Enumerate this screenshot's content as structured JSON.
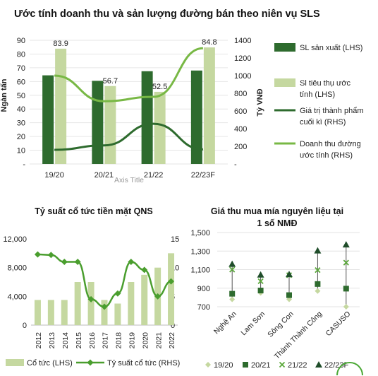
{
  "chart_data": [
    {
      "type": "bar",
      "title": "Ước tính doanh thu và sản lượng đường bán theo niên vụ SLS",
      "categories": [
        "19/20",
        "20/21",
        "21/22",
        "22/23F"
      ],
      "xlabel": "Axis Title",
      "ylabel": "Ngàn tấn",
      "y2label": "Tỷ VNĐ",
      "ylim": [
        0,
        90
      ],
      "y2lim": [
        0,
        1400
      ],
      "y_ticks": [
        "-",
        "10",
        "20",
        "30",
        "40",
        "50",
        "60",
        "70",
        "80",
        "90"
      ],
      "y2_ticks": [
        "-",
        "200",
        "400",
        "600",
        "800",
        "1000",
        "1200",
        "1400"
      ],
      "series": [
        {
          "name": "SL sản xuất (LHS)",
          "type": "bar",
          "axis": "left",
          "color": "#2e6b2e",
          "values": [
            64.5,
            60.5,
            67.5,
            68
          ]
        },
        {
          "name": "Sl tiêu thụ ước tính (LHS)",
          "type": "bar",
          "axis": "left",
          "color": "#c5d8a0",
          "values": [
            83.9,
            56.7,
            52.5,
            84.8
          ],
          "labels": [
            "83.9",
            "56.7",
            "52.5",
            "84.8"
          ]
        },
        {
          "name": "Giá trị thành phẩm cuối kì (RHS)",
          "type": "line",
          "axis": "right",
          "color": "#2e6b2e",
          "values": [
            160,
            210,
            455,
            165
          ]
        },
        {
          "name": "Doanh thu đường ước tính (RHS)",
          "type": "line",
          "axis": "right",
          "color": "#78b845",
          "values": [
            1000,
            710,
            760,
            1310
          ]
        }
      ],
      "legend": "right",
      "legend_lines": [
        [
          "SL sản xuất (LHS)"
        ],
        [
          "Sl tiêu thụ ước",
          "tính (LHS)"
        ],
        [
          "Giá trị thành phẩm",
          "cuối kì (RHS)"
        ],
        [
          "Doanh thu đường",
          "ước tính (RHS)"
        ]
      ]
    },
    {
      "type": "bar",
      "title": "Tỷ suất cổ tức tiền mặt QNS",
      "categories": [
        "2012",
        "2013",
        "2014",
        "2015",
        "2016",
        "2017",
        "2018",
        "2019",
        "2020",
        "2021",
        "2022"
      ],
      "ylim": [
        0,
        12000
      ],
      "y2lim": [
        0,
        15
      ],
      "y_ticks": [
        "0",
        "4,000",
        "8,000",
        "12,000"
      ],
      "y2_ticks": [
        "0",
        "5",
        "10",
        "15"
      ],
      "series": [
        {
          "name": "Cổ tức (LHS)",
          "type": "bar",
          "axis": "left",
          "color": "#c5d8a0",
          "values": [
            3500,
            3500,
            3500,
            6000,
            6000,
            3500,
            3000,
            6000,
            7000,
            8000,
            10000
          ]
        },
        {
          "name": "Tỷ suất cổ tức (RHS)",
          "type": "line",
          "axis": "right",
          "color": "#4a9e2e",
          "values": [
            12.3,
            12.2,
            11.0,
            11.0,
            4.5,
            3.2,
            5.5,
            11.0,
            9.6,
            5.0,
            7.6
          ]
        }
      ],
      "legend": "bottom"
    },
    {
      "type": "scatter",
      "title": "Giá thu mua mía nguyên liệu tại 1 số NMĐ",
      "title_lines": [
        "Giá thu mua mía nguyên liệu tại",
        "1 số NMĐ"
      ],
      "categories": [
        "Nghệ An",
        "Lam Sơn",
        "Sông Con",
        "Thành Thành Công",
        "CASUSO"
      ],
      "ylim": [
        700,
        1500
      ],
      "y_ticks": [
        "700",
        "900",
        "1,100",
        "1,300",
        "1,500"
      ],
      "series": [
        {
          "name": "19/20",
          "marker": "diamond",
          "color": "#c5d8a0",
          "values": [
            780,
            850,
            780,
            870,
            700
          ]
        },
        {
          "name": "20/21",
          "marker": "square",
          "color": "#2e6b2e",
          "values": [
            840,
            875,
            825,
            945,
            895
          ]
        },
        {
          "name": "21/22",
          "marker": "x",
          "color": "#5aa83a",
          "values": [
            1100,
            975,
            1040,
            1095,
            1175
          ]
        },
        {
          "name": "22/23F",
          "marker": "triangle",
          "color": "#1f4d2a",
          "values": [
            1160,
            1045,
            1050,
            1305,
            1370
          ]
        }
      ],
      "legend": "bottom"
    }
  ]
}
